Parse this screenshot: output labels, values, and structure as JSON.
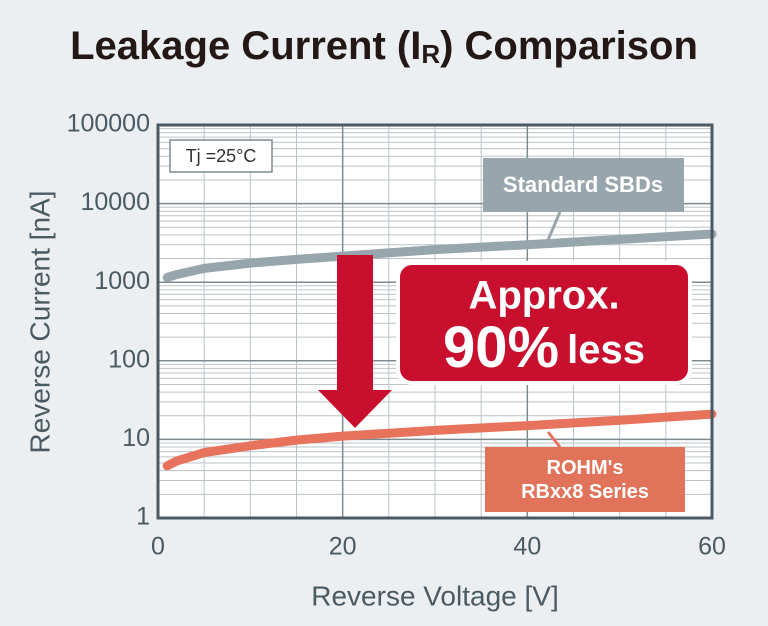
{
  "chart_data": {
    "type": "line",
    "title_parts": [
      "Leakage Current (I",
      "R",
      ") Comparison"
    ],
    "x_label": "Reverse Voltage [V]",
    "y_label": "Reverse Current [nA]",
    "x": [
      1,
      2,
      5,
      10,
      15,
      20,
      30,
      40,
      50,
      60
    ],
    "series": [
      {
        "name": "Standard SBDs",
        "color": "#97a6ad",
        "values": [
          1150,
          1250,
          1500,
          1750,
          1950,
          2150,
          2600,
          3000,
          3500,
          4100
        ]
      },
      {
        "name": "ROHM's RBxx8 Series",
        "color": "#e8735c",
        "values": [
          4.6,
          5.3,
          6.8,
          8.3,
          9.8,
          11,
          13,
          15,
          17.5,
          21
        ]
      }
    ],
    "xlim": [
      0,
      60
    ],
    "xticks": [
      0,
      20,
      40,
      60
    ],
    "ylim": [
      1,
      100000
    ],
    "yticks": [
      1,
      10,
      100,
      1000,
      10000,
      100000
    ],
    "y_log": true,
    "grid": true,
    "condition": "Tj =25°C",
    "callout": [
      "Approx.",
      "90%",
      "less"
    ],
    "callout_color": "#c8102e"
  }
}
